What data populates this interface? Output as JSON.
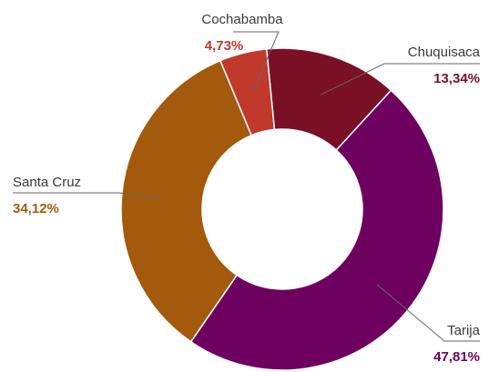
{
  "chart_data": {
    "type": "pie",
    "title": "",
    "donut": true,
    "slices": [
      {
        "label": "Chuquisaca",
        "value": 13.34,
        "value_label": "13,34%",
        "color": "#7a1025"
      },
      {
        "label": "Tarija",
        "value": 47.81,
        "value_label": "47,81%",
        "color": "#6e0060"
      },
      {
        "label": "Santa Cruz",
        "value": 34.12,
        "value_label": "34,12%",
        "color": "#a35a0c"
      },
      {
        "label": "Cochabamba",
        "value": 4.73,
        "value_label": "4,73%",
        "color": "#c0392b"
      }
    ],
    "legend": "none"
  }
}
